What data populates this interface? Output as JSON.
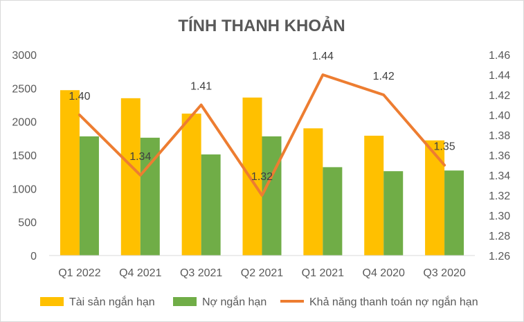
{
  "chart_data": {
    "type": "bar",
    "title": "TÍNH THANH KHOẢN",
    "categories": [
      "Q1 2022",
      "Q4 2021",
      "Q3 2021",
      "Q2 2021",
      "Q1 2021",
      "Q4 2020",
      "Q3 2020"
    ],
    "series": [
      {
        "name": "Tài sản ngắn hạn",
        "type": "bar",
        "axis": "left",
        "color": "#FFC000",
        "values": [
          2470,
          2350,
          2120,
          2360,
          1900,
          1790,
          1720
        ]
      },
      {
        "name": "Nợ ngắn hạn",
        "type": "bar",
        "axis": "left",
        "color": "#70AD47",
        "values": [
          1780,
          1760,
          1510,
          1780,
          1320,
          1260,
          1270
        ]
      },
      {
        "name": "Khả năng thanh toán nợ ngắn hạn",
        "type": "line",
        "axis": "right",
        "color": "#ED7D31",
        "values": [
          1.4,
          1.34,
          1.41,
          1.32,
          1.44,
          1.42,
          1.35
        ],
        "labels": [
          "1.40",
          "1.34",
          "1.41",
          "1.32",
          "1.44",
          "1.42",
          "1.35"
        ]
      }
    ],
    "y_left": {
      "min": 0,
      "max": 3000,
      "step": 500,
      "ticks": [
        "0",
        "500",
        "1000",
        "1500",
        "2000",
        "2500",
        "3000"
      ]
    },
    "y_right": {
      "min": 1.26,
      "max": 1.46,
      "step": 0.02,
      "ticks": [
        "1.26",
        "1.28",
        "1.30",
        "1.32",
        "1.34",
        "1.36",
        "1.38",
        "1.40",
        "1.42",
        "1.44",
        "1.46"
      ]
    },
    "grid": false,
    "legend": "bottom"
  }
}
